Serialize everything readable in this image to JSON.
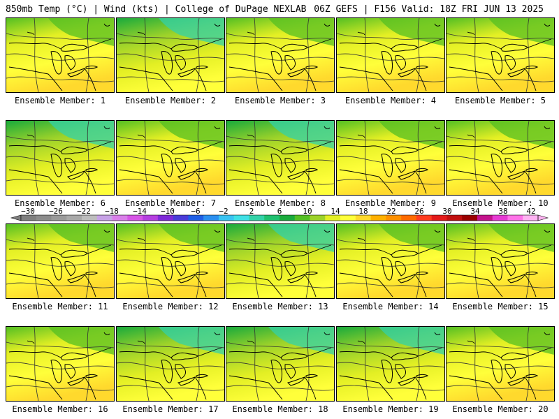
{
  "header": {
    "left_title": "850mb Temp (°C) | Wind (kts) | College of DuPage NEXLAB",
    "right_title": "06Z GEFS | F156 Valid: 18Z FRI JUN 13 2025"
  },
  "colorbar": {
    "tick_labels": [
      "−30",
      "−26",
      "−22",
      "−18",
      "−14",
      "−10",
      "−6",
      "−2",
      "2",
      "6",
      "10",
      "14",
      "18",
      "22",
      "26",
      "30",
      "34",
      "38",
      "42"
    ],
    "colors": [
      "#7f7f7f",
      "#8c8c8c",
      "#9a9a9a",
      "#a9a9a9",
      "#bdbdbd",
      "#c7a2e6",
      "#d97fe9",
      "#d655e6",
      "#b53fe0",
      "#7f2ad8",
      "#4a3bd8",
      "#1f5fe6",
      "#2b8ff0",
      "#39c3f2",
      "#40e0e6",
      "#33d2a8",
      "#1fc070",
      "#19aa3c",
      "#54bf23",
      "#9cd22a",
      "#e3ef24",
      "#ffff3a",
      "#ffd92d",
      "#ffb000",
      "#ff9000",
      "#ff6a00",
      "#ff3c1f",
      "#e31a1a",
      "#c00f0f",
      "#9a0000",
      "#c3138c",
      "#e63bd3",
      "#ff72e8",
      "#ffb2f2"
    ]
  },
  "members": [
    {
      "label": "Ensemble Member: 1",
      "warmth": 0.55
    },
    {
      "label": "Ensemble Member: 2",
      "warmth": 0.45
    },
    {
      "label": "Ensemble Member: 3",
      "warmth": 0.72
    },
    {
      "label": "Ensemble Member: 4",
      "warmth": 0.62
    },
    {
      "label": "Ensemble Member: 5",
      "warmth": 0.58
    },
    {
      "label": "Ensemble Member: 6",
      "warmth": 0.28
    },
    {
      "label": "Ensemble Member: 7",
      "warmth": 0.7
    },
    {
      "label": "Ensemble Member: 8",
      "warmth": 0.4
    },
    {
      "label": "Ensemble Member: 9",
      "warmth": 0.68
    },
    {
      "label": "Ensemble Member: 10",
      "warmth": 0.64
    },
    {
      "label": "Ensemble Member: 11",
      "warmth": 0.5
    },
    {
      "label": "Ensemble Member: 12",
      "warmth": 0.6
    },
    {
      "label": "Ensemble Member: 13",
      "warmth": 0.42
    },
    {
      "label": "Ensemble Member: 14",
      "warmth": 0.52
    },
    {
      "label": "Ensemble Member: 15",
      "warmth": 0.7
    },
    {
      "label": "Ensemble Member: 16",
      "warmth": 0.5
    },
    {
      "label": "Ensemble Member: 17",
      "warmth": 0.48
    },
    {
      "label": "Ensemble Member: 18",
      "warmth": 0.46
    },
    {
      "label": "Ensemble Member: 19",
      "warmth": 0.44
    },
    {
      "label": "Ensemble Member: 20",
      "warmth": 0.5
    }
  ]
}
